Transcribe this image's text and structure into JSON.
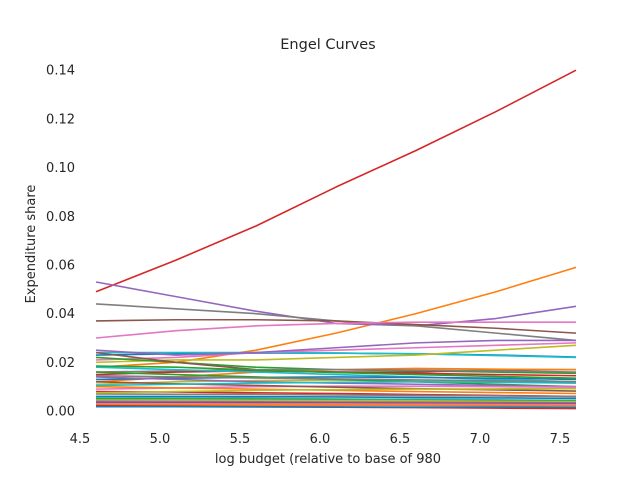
{
  "chart_data": {
    "type": "line",
    "title": "Engel Curves",
    "xlabel": "log budget (relative to base of 980",
    "ylabel": "Expenditure share",
    "xlim": [
      4.5,
      7.6
    ],
    "ylim": [
      -0.0045,
      0.145
    ],
    "xticks": [
      4.5,
      5.0,
      5.5,
      6.0,
      6.5,
      7.0,
      7.5
    ],
    "xtick_labels": [
      "4.5",
      "5.0",
      "5.5",
      "6.0",
      "6.5",
      "7.0",
      "7.5"
    ],
    "yticks": [
      0.0,
      0.02,
      0.04,
      0.06,
      0.08,
      0.1,
      0.12,
      0.14
    ],
    "ytick_labels": [
      "0.00",
      "0.02",
      "0.04",
      "0.06",
      "0.08",
      "0.10",
      "0.12",
      "0.14"
    ],
    "grid": false,
    "legend": "none",
    "x": [
      4.6,
      5.1,
      5.6,
      6.1,
      6.6,
      7.1,
      7.6
    ],
    "series": [
      {
        "color": "#d62728",
        "values": [
          0.049,
          0.062,
          0.076,
          0.092,
          0.107,
          0.123,
          0.14
        ]
      },
      {
        "color": "#ff7f0e",
        "values": [
          0.018,
          0.02,
          0.025,
          0.032,
          0.04,
          0.049,
          0.059
        ]
      },
      {
        "color": "#9467bd",
        "values": [
          0.053,
          0.047,
          0.041,
          0.036,
          0.035,
          0.038,
          0.043
        ]
      },
      {
        "color": "#7f7f7f",
        "values": [
          0.044,
          0.042,
          0.04,
          0.037,
          0.035,
          0.032,
          0.029
        ]
      },
      {
        "color": "#8c564b",
        "values": [
          0.037,
          0.0375,
          0.0375,
          0.037,
          0.0355,
          0.034,
          0.032
        ]
      },
      {
        "color": "#e377c2",
        "values": [
          0.03,
          0.033,
          0.035,
          0.036,
          0.0365,
          0.0365,
          0.0365
        ]
      },
      {
        "color": "#1f77b4",
        "values": [
          0.023,
          0.0235,
          0.0238,
          0.0238,
          0.0235,
          0.023,
          0.0222
        ]
      },
      {
        "color": "#17becf",
        "values": [
          0.024,
          0.024,
          0.024,
          0.0238,
          0.0235,
          0.0228,
          0.022
        ]
      },
      {
        "color": "#e377c2",
        "values": [
          0.021,
          0.022,
          0.024,
          0.025,
          0.026,
          0.027,
          0.028
        ]
      },
      {
        "color": "#bcbd22",
        "values": [
          0.02,
          0.021,
          0.021,
          0.022,
          0.023,
          0.025,
          0.027
        ]
      },
      {
        "color": "#9467bd",
        "values": [
          0.025,
          0.023,
          0.024,
          0.026,
          0.028,
          0.029,
          0.029
        ]
      },
      {
        "color": "#2ca02c",
        "values": [
          0.022,
          0.02,
          0.018,
          0.017,
          0.0165,
          0.016,
          0.0155
        ]
      },
      {
        "color": "#8c564b",
        "values": [
          0.024,
          0.02,
          0.017,
          0.016,
          0.016,
          0.017,
          0.017
        ]
      },
      {
        "color": "#ff7f0e",
        "values": [
          0.012,
          0.014,
          0.016,
          0.017,
          0.0175,
          0.0172,
          0.017
        ]
      },
      {
        "color": "#7f7f7f",
        "values": [
          0.016,
          0.0165,
          0.017,
          0.017,
          0.0168,
          0.0165,
          0.016
        ]
      },
      {
        "color": "#d62728",
        "values": [
          0.015,
          0.016,
          0.0165,
          0.016,
          0.0155,
          0.015,
          0.0145
        ]
      },
      {
        "color": "#17becf",
        "values": [
          0.018,
          0.017,
          0.016,
          0.015,
          0.014,
          0.013,
          0.012
        ]
      },
      {
        "color": "#1f77b4",
        "values": [
          0.013,
          0.0135,
          0.0138,
          0.014,
          0.0138,
          0.0135,
          0.013
        ]
      },
      {
        "color": "#bcbd22",
        "values": [
          0.011,
          0.012,
          0.0125,
          0.0127,
          0.0125,
          0.012,
          0.0115
        ]
      },
      {
        "color": "#2ca02c",
        "values": [
          0.016,
          0.015,
          0.014,
          0.013,
          0.012,
          0.011,
          0.01
        ]
      },
      {
        "color": "#9467bd",
        "values": [
          0.014,
          0.013,
          0.012,
          0.0115,
          0.011,
          0.0105,
          0.01
        ]
      },
      {
        "color": "#e377c2",
        "values": [
          0.009,
          0.0095,
          0.01,
          0.0102,
          0.0102,
          0.01,
          0.0098
        ]
      },
      {
        "color": "#8c564b",
        "values": [
          0.012,
          0.0112,
          0.0105,
          0.0098,
          0.0092,
          0.0087,
          0.0082
        ]
      },
      {
        "color": "#ff7f0e",
        "values": [
          0.01,
          0.0095,
          0.009,
          0.0085,
          0.008,
          0.0076,
          0.0072
        ]
      },
      {
        "color": "#d62728",
        "values": [
          0.008,
          0.0078,
          0.0075,
          0.0072,
          0.0068,
          0.0064,
          0.006
        ]
      },
      {
        "color": "#7f7f7f",
        "values": [
          0.007,
          0.0069,
          0.0068,
          0.0066,
          0.0064,
          0.0062,
          0.006
        ]
      },
      {
        "color": "#1f77b4",
        "values": [
          0.006,
          0.006,
          0.0059,
          0.0058,
          0.0056,
          0.0054,
          0.0052
        ]
      },
      {
        "color": "#17becf",
        "values": [
          0.0055,
          0.0054,
          0.0052,
          0.005,
          0.0048,
          0.0046,
          0.0044
        ]
      },
      {
        "color": "#2ca02c",
        "values": [
          0.005,
          0.0049,
          0.0048,
          0.0046,
          0.0044,
          0.0042,
          0.004
        ]
      },
      {
        "color": "#bcbd22",
        "values": [
          0.0045,
          0.0045,
          0.0044,
          0.0043,
          0.0042,
          0.004,
          0.0038
        ]
      },
      {
        "color": "#9467bd",
        "values": [
          0.004,
          0.0039,
          0.0038,
          0.0037,
          0.0036,
          0.0035,
          0.0034
        ]
      },
      {
        "color": "#8c564b",
        "values": [
          0.0035,
          0.0034,
          0.0034,
          0.0033,
          0.0032,
          0.0031,
          0.003
        ]
      },
      {
        "color": "#e377c2",
        "values": [
          0.003,
          0.003,
          0.0029,
          0.0029,
          0.0028,
          0.0027,
          0.0026
        ]
      },
      {
        "color": "#ff7f0e",
        "values": [
          0.0025,
          0.0025,
          0.0024,
          0.0024,
          0.0023,
          0.0022,
          0.0021
        ]
      },
      {
        "color": "#d62728",
        "values": [
          0.0022,
          0.002,
          0.0018,
          0.0016,
          0.0014,
          0.0012,
          0.001
        ]
      },
      {
        "color": "#1f77b4",
        "values": [
          0.0018,
          0.0018,
          0.0017,
          0.0017,
          0.0016,
          0.0016,
          0.0015
        ]
      },
      {
        "color": "#2ca02c",
        "values": [
          0.0185,
          0.018,
          0.0168,
          0.0158,
          0.015,
          0.0142,
          0.0135
        ]
      },
      {
        "color": "#17becf",
        "values": [
          0.0105,
          0.011,
          0.0115,
          0.0118,
          0.012,
          0.0118,
          0.0115
        ]
      },
      {
        "color": "#7f7f7f",
        "values": [
          0.0145,
          0.014,
          0.0136,
          0.0132,
          0.0128,
          0.0124,
          0.012
        ]
      },
      {
        "color": "#bcbd22",
        "values": [
          0.0075,
          0.008,
          0.0085,
          0.0088,
          0.009,
          0.0091,
          0.0092
        ]
      }
    ]
  }
}
